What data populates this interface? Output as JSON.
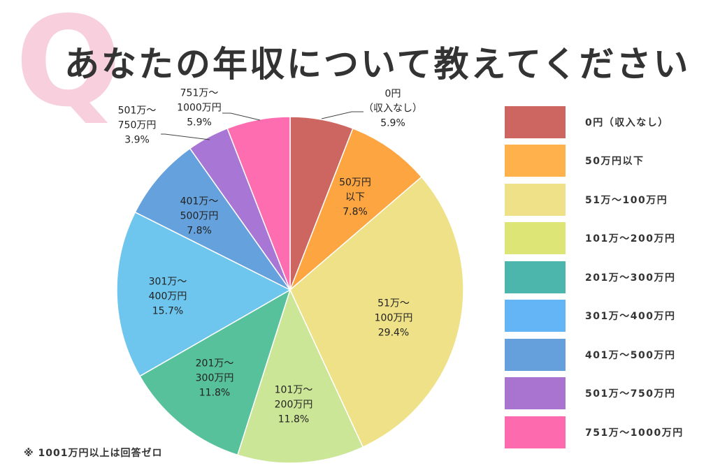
{
  "watermark_letter": "Q",
  "title": "あなたの年収について教えてください",
  "footnote": "※ 1001万円以上は回答ゼロ",
  "chart_data": {
    "type": "pie",
    "title": "あなたの年収について教えてください",
    "unit": "%",
    "start": "top, clockwise",
    "legend_position": "right",
    "slices": [
      {
        "legend": "0円（収入なし）",
        "label": [
          "0円",
          "（収入なし）",
          "5.9%"
        ],
        "value": 5.9,
        "color": "#cd6660",
        "legend_color": "#cd6660"
      },
      {
        "legend": "50万円以下",
        "label": [
          "50万円",
          "以下",
          "7.8%"
        ],
        "value": 7.8,
        "color": "#fca541",
        "legend_color": "#ffb24c"
      },
      {
        "legend": "51万〜100万円",
        "label": [
          "51万〜",
          "100万円",
          "29.4%"
        ],
        "value": 29.4,
        "color": "#eee187",
        "legend_color": "#eee187"
      },
      {
        "legend": "101万〜200万円",
        "label": [
          "101万〜",
          "200万円",
          "11.8%"
        ],
        "value": 11.8,
        "color": "#cbe696",
        "legend_color": "#dde576"
      },
      {
        "legend": "201万〜300万円",
        "label": [
          "201万〜",
          "300万円",
          "11.8%"
        ],
        "value": 11.8,
        "color": "#57c19c",
        "legend_color": "#4db6ac"
      },
      {
        "legend": "301万〜400万円",
        "label": [
          "301万〜",
          "400万円",
          "15.7%"
        ],
        "value": 15.7,
        "color": "#6ec6ee",
        "legend_color": "#63b5f6"
      },
      {
        "legend": "401万〜500万円",
        "label": [
          "401万〜",
          "500万円",
          "7.8%"
        ],
        "value": 7.8,
        "color": "#65a1dc",
        "legend_color": "#65a0dc"
      },
      {
        "legend": "501万〜750万円",
        "label": [
          "501万〜",
          "750万円",
          "3.9%"
        ],
        "value": 3.9,
        "color": "#a876d4",
        "legend_color": "#a874d0"
      },
      {
        "legend": "751万〜1000万円",
        "label": [
          "751万〜",
          "1000万円",
          "5.9%"
        ],
        "value": 5.9,
        "color": "#fd6db0",
        "legend_color": "#fe6aae"
      }
    ]
  }
}
